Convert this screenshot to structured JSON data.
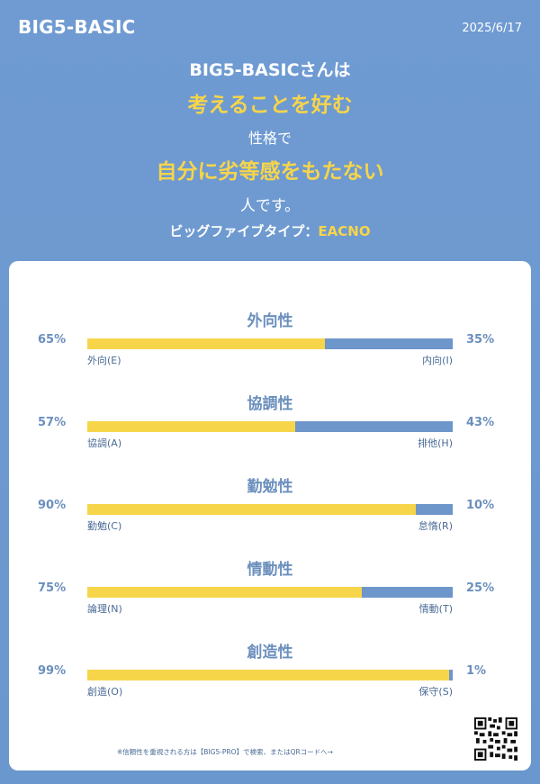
{
  "header": {
    "brand": "BIG5-BASIC",
    "date": "2025/6/17"
  },
  "summary": {
    "line1": "BIG5-BASICさんは",
    "line2": "考えることを好む",
    "line3": "性格で",
    "line4": "自分に劣等感をもたない",
    "line5": "人です。",
    "type_label": "ビッグファイブタイプ：",
    "type_code": "EACNO"
  },
  "colors": {
    "background": "#6f9bd2",
    "accent_yellow": "#f7d54a",
    "bar_blue": "#6d96cb",
    "text_blue": "#6b8fbd"
  },
  "traits": [
    {
      "title": "外向性",
      "left_pct": "65%",
      "right_pct": "35%",
      "left_label": "外向(E)",
      "right_label": "内向(I)",
      "value": 65
    },
    {
      "title": "協調性",
      "left_pct": "57%",
      "right_pct": "43%",
      "left_label": "協調(A)",
      "right_label": "排他(H)",
      "value": 57
    },
    {
      "title": "勤勉性",
      "left_pct": "90%",
      "right_pct": "10%",
      "left_label": "勤勉(C)",
      "right_label": "怠惰(R)",
      "value": 90
    },
    {
      "title": "情動性",
      "left_pct": "75%",
      "right_pct": "25%",
      "left_label": "論理(N)",
      "right_label": "情動(T)",
      "value": 75
    },
    {
      "title": "創造性",
      "left_pct": "99%",
      "right_pct": "1%",
      "left_label": "創造(O)",
      "right_label": "保守(S)",
      "value": 99
    }
  ],
  "footer": {
    "note": "※信頼性を重視される方は【BIG5-PRO】で検索、またはQRコードへ→",
    "qr_icon": "qr-code-icon"
  }
}
